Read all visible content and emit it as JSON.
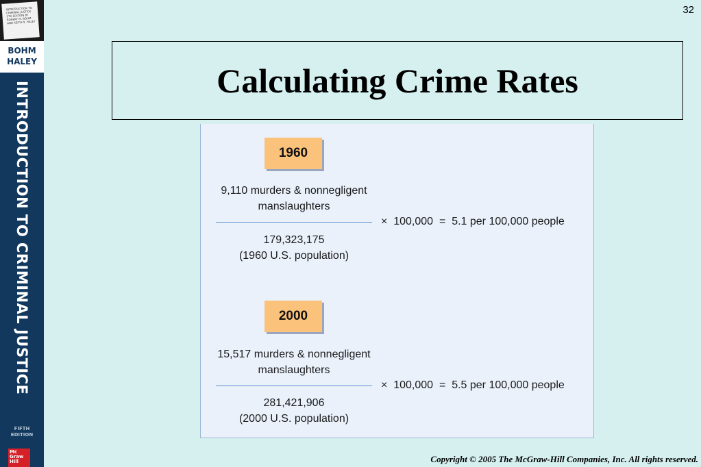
{
  "sidebar": {
    "book_cover_text": "INTRODUCTION TO CRIMINAL JUSTICE 5TH EDITION BY ROBERT M. BOHM AND KEITH N. HALEY",
    "authors_line1": "BOHM",
    "authors_line2": "HALEY",
    "spine_title": "INTRODUCTION TO CRIMINAL JUSTICE",
    "edition_line1": "FIFTH",
    "edition_line2": "EDITION",
    "publisher_logo_text": "Mc Graw Hill"
  },
  "slide": {
    "page_number": "32",
    "title": "Calculating Crime Rates",
    "copyright": "Copyright © 2005 The McGraw-Hill Companies, Inc. All rights reserved."
  },
  "calculations": [
    {
      "year": "1960",
      "numerator_line1": "9,110 murders & nonnegligent",
      "numerator_line2": "manslaughters",
      "denominator_line1": "179,323,175",
      "denominator_line2": "(1960 U.S. population)",
      "multiplier": "×  100,000  =  5.1 per 100,000 people"
    },
    {
      "year": "2000",
      "numerator_line1": "15,517 murders & nonnegligent",
      "numerator_line2": "manslaughters",
      "denominator_line1": "281,421,906",
      "denominator_line2": "(2000 U.S. population)",
      "multiplier": "×  100,000  =  5.5 per 100,000 people"
    }
  ],
  "colors": {
    "background": "#d6f0f0",
    "sidebar": "#12385e",
    "panel": "#eaf1fb",
    "year_tag": "#fbc27b",
    "fraction_line": "#5b8fcf"
  }
}
